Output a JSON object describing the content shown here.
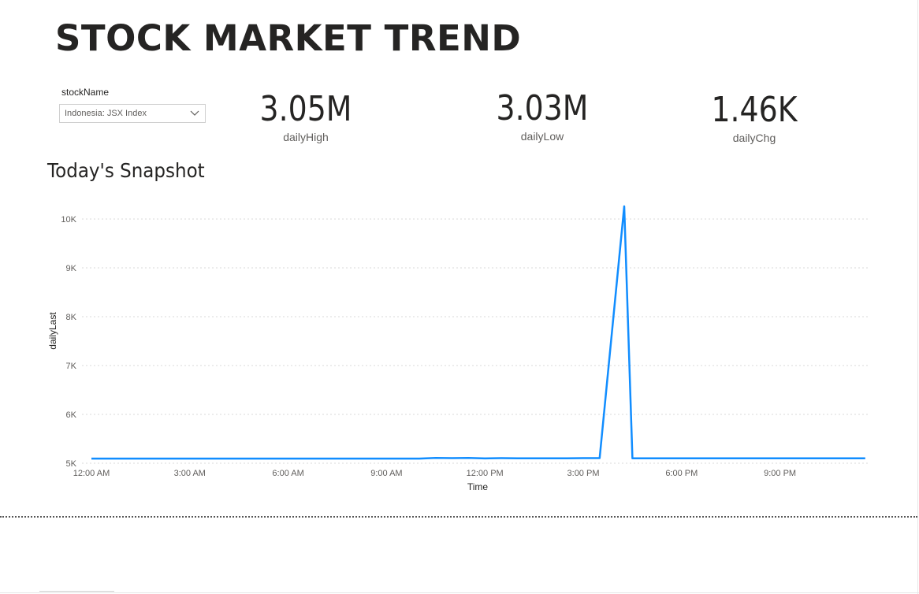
{
  "header": {
    "title": "STOCK MARKET TREND"
  },
  "slicer": {
    "label": "stockName",
    "selected": "Indonesia: JSX Index",
    "icon": "chevron-down-icon"
  },
  "cards": [
    {
      "value": "3.05M",
      "label": "dailyHigh"
    },
    {
      "value": "3.03M",
      "label": "dailyLow"
    },
    {
      "value": "1.46K",
      "label": "dailyChg"
    }
  ],
  "section": {
    "title": "Today's Snapshot"
  },
  "chart_data": {
    "type": "line",
    "title": "Today's Snapshot",
    "xlabel": "Time",
    "ylabel": "dailyLast",
    "x_ticks": [
      "12:00 AM",
      "3:00 AM",
      "6:00 AM",
      "9:00 AM",
      "12:00 PM",
      "3:00 PM",
      "6:00 PM",
      "9:00 PM"
    ],
    "y_ticks": [
      "5K",
      "6K",
      "7K",
      "8K",
      "9K",
      "10K"
    ],
    "x_range_hours": [
      0,
      23.6
    ],
    "ylim": [
      5000,
      10200
    ],
    "grid": true,
    "line_color": "#118DFF",
    "series": [
      {
        "name": "dailyLast",
        "points": [
          {
            "x": 0,
            "y": 5095
          },
          {
            "x": 10.0,
            "y": 5095
          },
          {
            "x": 10.5,
            "y": 5110
          },
          {
            "x": 11.0,
            "y": 5105
          },
          {
            "x": 11.5,
            "y": 5110
          },
          {
            "x": 12.0,
            "y": 5098
          },
          {
            "x": 12.5,
            "y": 5105
          },
          {
            "x": 13.0,
            "y": 5100
          },
          {
            "x": 14.5,
            "y": 5100
          },
          {
            "x": 15.0,
            "y": 5105
          },
          {
            "x": 15.5,
            "y": 5105
          },
          {
            "x": 16.25,
            "y": 10260
          },
          {
            "x": 16.5,
            "y": 5100
          },
          {
            "x": 23.6,
            "y": 5100
          }
        ]
      }
    ]
  }
}
